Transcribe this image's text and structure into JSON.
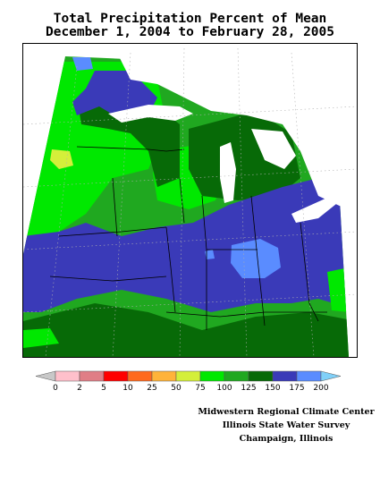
{
  "title": {
    "line1": "Total Precipitation Percent of Mean",
    "line2": "December 1, 2004 to February 28, 2005"
  },
  "map": {
    "variable": "Total Precipitation Percent of Mean",
    "units": "percent of mean"
  },
  "legend": {
    "items": [
      {
        "label": "0",
        "color": "#c8c8c8"
      },
      {
        "label": "2",
        "color": "#ffc0cb"
      },
      {
        "label": "5",
        "color": "#e07e86"
      },
      {
        "label": "10",
        "color": "#ff0000"
      },
      {
        "label": "25",
        "color": "#ff6a1e"
      },
      {
        "label": "50",
        "color": "#ffb33a"
      },
      {
        "label": "75",
        "color": "#d4ef3a"
      },
      {
        "label": "100",
        "color": "#00e800"
      },
      {
        "label": "125",
        "color": "#20a820"
      },
      {
        "label": "150",
        "color": "#076a07"
      },
      {
        "label": "175",
        "color": "#3a3ab8"
      },
      {
        "label": "200",
        "color": "#5a8cff"
      },
      {
        "label": "",
        "color": "#80d0f8"
      }
    ]
  },
  "credits": {
    "line1": "Midwestern Regional Climate Center",
    "line2": "Illinois State Water Survey",
    "line3": "Champaign, Illinois"
  }
}
